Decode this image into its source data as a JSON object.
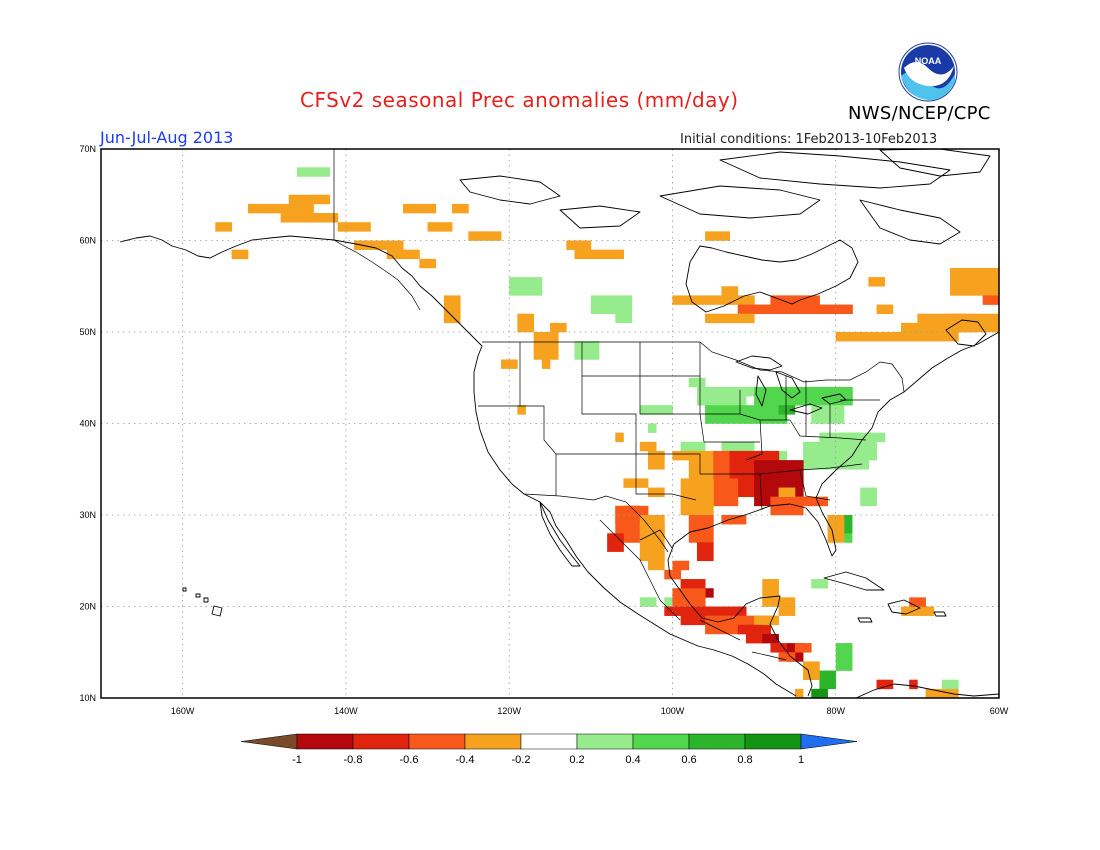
{
  "title": "CFSv2 seasonal Prec anomalies (mm/day)",
  "agency": "NWS/NCEP/CPC",
  "season": "Jun-Jul-Aug 2013",
  "initial_conditions": "Initial conditions: 1Feb2013-10Feb2013",
  "logo_text": "NOAA",
  "lat_labels": [
    "70N",
    "60N",
    "50N",
    "40N",
    "30N",
    "20N",
    "10N"
  ],
  "lon_labels": [
    "160W",
    "140W",
    "120W",
    "100W",
    "80W",
    "60W"
  ],
  "colorbar": {
    "labels": [
      "-1",
      "-0.8",
      "-0.6",
      "-0.4",
      "-0.2",
      "0.2",
      "0.4",
      "0.6",
      "0.8",
      "1"
    ],
    "colors": [
      "#7a4a2a",
      "#b4090c",
      "#e0240e",
      "#f8581a",
      "#f7a21f",
      "#ffffff",
      "#96eb8c",
      "#52d64e",
      "#2cb52a",
      "#139413",
      "#1f6ef0"
    ]
  },
  "chart_data": {
    "type": "heatmap",
    "variable": "Precipitation anomaly",
    "units": "mm/day",
    "extent": {
      "lon": [
        -170,
        -60
      ],
      "lat": [
        10,
        70
      ]
    },
    "anomaly_regions": [
      {
        "area": "Western Alaska",
        "anomaly": -0.3
      },
      {
        "area": "Yukon / Northwest Territories",
        "anomaly": -0.3
      },
      {
        "area": "Northern Ontario / Hudson Bay coast",
        "anomaly": -0.5
      },
      {
        "area": "Quebec / Labrador / St. Lawrence",
        "anomaly": -0.4
      },
      {
        "area": "Pacific Northwest interior",
        "anomaly": -0.3
      },
      {
        "area": "Texas / Louisiana / Mississippi",
        "anomaly": -0.7
      },
      {
        "area": "Northwest Mexico / Sierra Madre",
        "anomaly": -0.7
      },
      {
        "area": "Southern Mexico / Central America",
        "anomaly": -0.8
      },
      {
        "area": "Southern Florida",
        "anomaly": -0.3
      },
      {
        "area": "Hispaniola",
        "anomaly": -0.4
      },
      {
        "area": "Great Lakes / Ohio Valley",
        "anomaly": 0.4
      },
      {
        "area": "Mid-Atlantic / Carolinas",
        "anomaly": 0.3
      },
      {
        "area": "Northern Plains / Southern Prairies",
        "anomaly": 0.3
      },
      {
        "area": "Panama / Costa Rica",
        "anomaly": 0.6
      }
    ]
  }
}
